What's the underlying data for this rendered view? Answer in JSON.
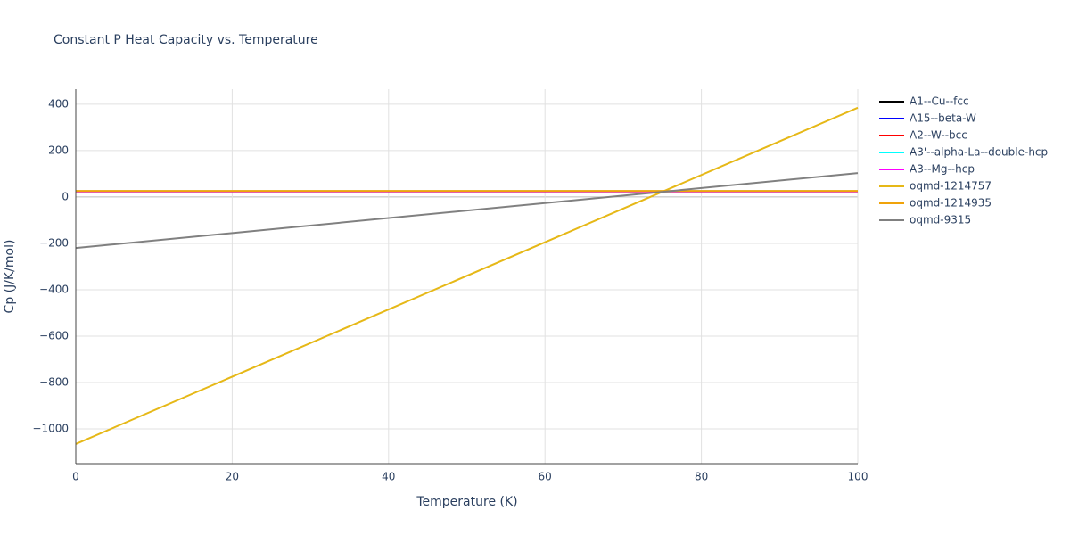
{
  "chart_data": {
    "type": "line",
    "title": "Constant P Heat Capacity vs. Temperature",
    "x_label": "Temperature (K)",
    "y_label": "Cp (J/K/mol)",
    "x": [
      0,
      100
    ],
    "xlim": [
      0,
      100
    ],
    "xticks": [
      0,
      20,
      40,
      60,
      80,
      100
    ],
    "ylim": [
      -1150,
      465
    ],
    "yticks": [
      {
        "value": -1000,
        "label": "−1000"
      },
      {
        "value": -800,
        "label": "−800"
      },
      {
        "value": -600,
        "label": "−600"
      },
      {
        "value": -400,
        "label": "−400"
      },
      {
        "value": -200,
        "label": "−200"
      },
      0,
      200,
      400
    ],
    "grid": true,
    "legend": "right",
    "series": [
      {
        "name": "A1--Cu--fcc",
        "color": "#000000",
        "values": [
          24,
          24
        ]
      },
      {
        "name": "A15--beta-W",
        "color": "#0000ff",
        "values": [
          24.5,
          24.5
        ]
      },
      {
        "name": "A2--W--bcc",
        "color": "#ff0000",
        "values": [
          24.2,
          24.2
        ]
      },
      {
        "name": "A3'--alpha-La--double-hcp",
        "color": "#00ffff",
        "values": [
          25,
          25
        ]
      },
      {
        "name": "A3--Mg--hcp",
        "color": "#ff00ff",
        "values": [
          24.8,
          24.8
        ]
      },
      {
        "name": "oqmd-1214757",
        "color": "#e6b817",
        "values": [
          -1065,
          385
        ]
      },
      {
        "name": "oqmd-1214935",
        "color": "#f0a30a",
        "values": [
          26,
          26
        ]
      },
      {
        "name": "oqmd-9315",
        "color": "#808080",
        "values": [
          -220,
          103
        ]
      }
    ]
  }
}
